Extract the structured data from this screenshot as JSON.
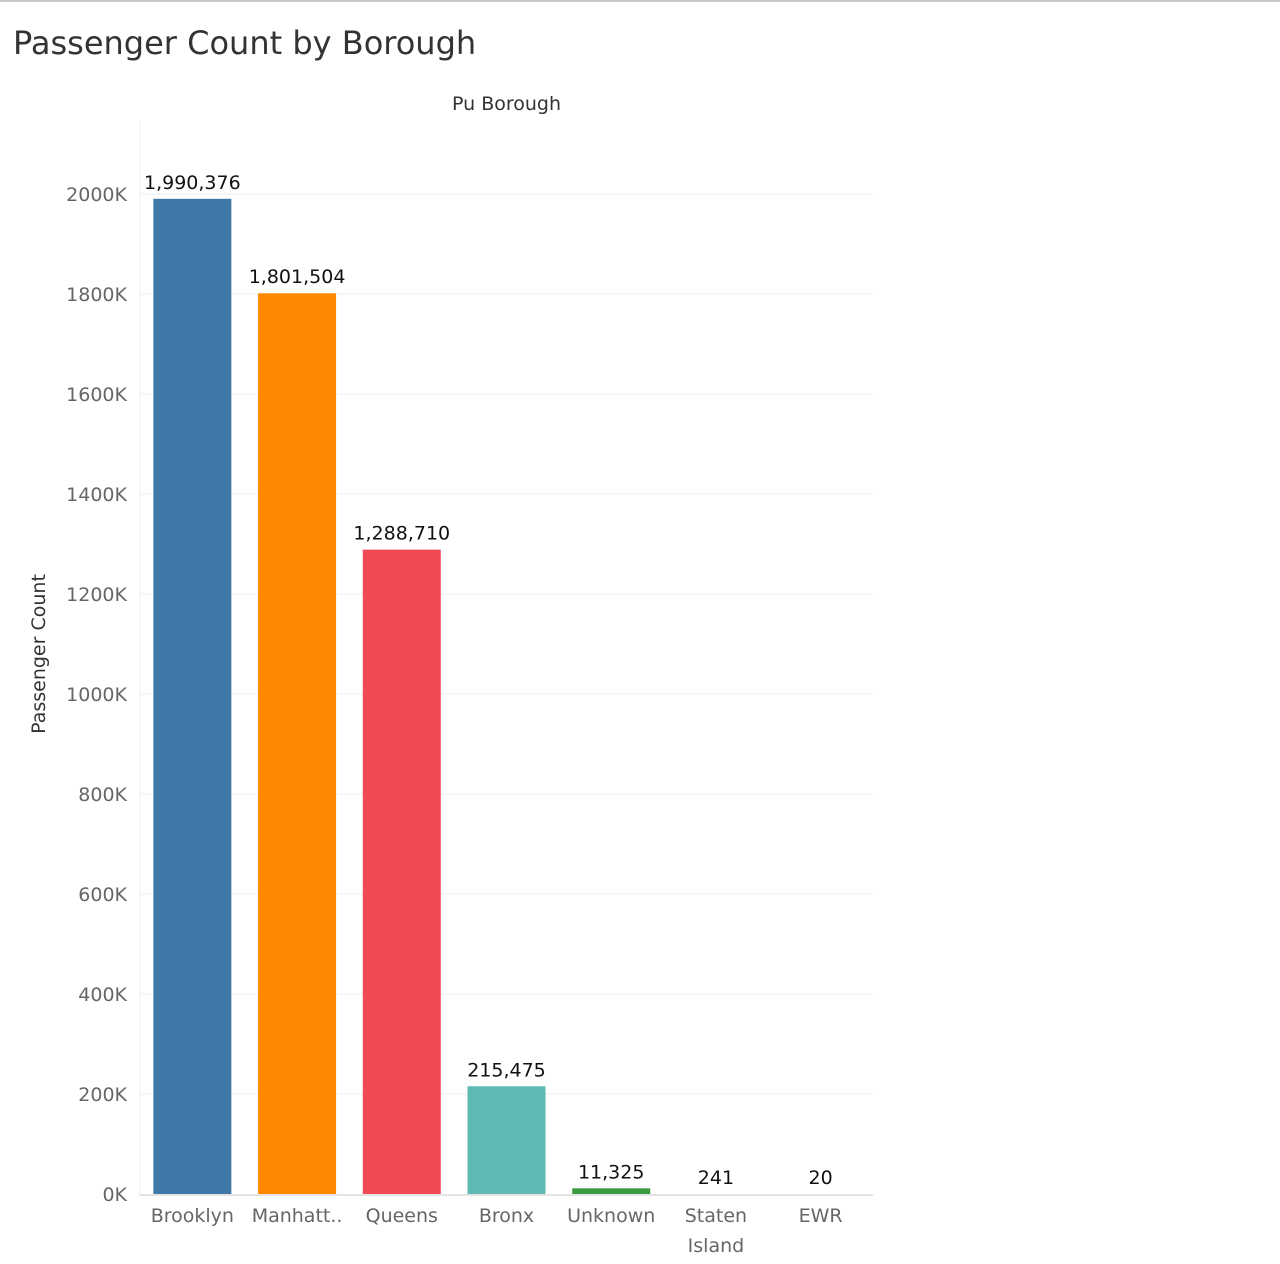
{
  "chart_data": {
    "type": "bar",
    "title": "Passenger Count by Borough",
    "column_header": "Pu Borough",
    "xlabel": "",
    "ylabel": "Passenger Count",
    "categories": [
      {
        "label": "Brooklyn",
        "lines": [
          "Brooklyn"
        ]
      },
      {
        "label": "Manhatt..",
        "lines": [
          "Manhatt.."
        ]
      },
      {
        "label": "Queens",
        "lines": [
          "Queens"
        ]
      },
      {
        "label": "Bronx",
        "lines": [
          "Bronx"
        ]
      },
      {
        "label": "Unknown",
        "lines": [
          "Unknown"
        ]
      },
      {
        "label": "Staten Island",
        "lines": [
          "Staten",
          "Island"
        ]
      },
      {
        "label": "EWR",
        "lines": [
          "EWR"
        ]
      }
    ],
    "values": [
      1990376,
      1801504,
      1288710,
      215475,
      11325,
      241,
      20
    ],
    "value_labels": [
      "1,990,376",
      "1,801,504",
      "1,288,710",
      "215,475",
      "11,325",
      "241",
      "20"
    ],
    "colors": [
      "#4079a8",
      "#ff8800",
      "#f24a55",
      "#5fb8b1",
      "#3b9a3f",
      "#e0a020",
      "#b07aa1"
    ],
    "ylim": [
      0,
      2000000
    ],
    "yticks": [
      0,
      200000,
      400000,
      600000,
      800000,
      1000000,
      1200000,
      1400000,
      1600000,
      1800000,
      2000000
    ],
    "ytick_labels": [
      "0K",
      "200K",
      "400K",
      "600K",
      "800K",
      "1000K",
      "1200K",
      "1400K",
      "1600K",
      "1800K",
      "2000K"
    ],
    "grid": true,
    "legend": "none"
  }
}
